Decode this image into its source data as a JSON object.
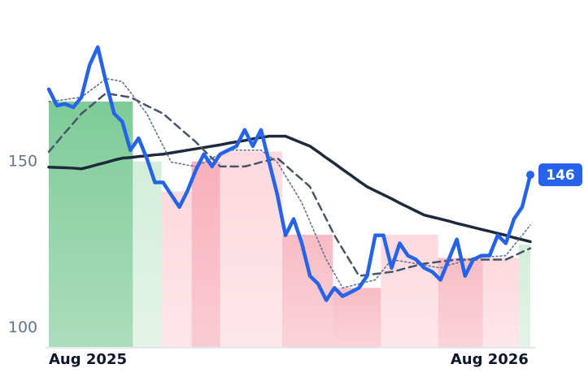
{
  "chart_data": {
    "type": "line",
    "categories": [
      "Aug 2025",
      null,
      null,
      null,
      null,
      null,
      null,
      null,
      null,
      null,
      null,
      null,
      null,
      null,
      null,
      null,
      null,
      null,
      null,
      null,
      null,
      null,
      null,
      null,
      null,
      null,
      null,
      null,
      null,
      null,
      null,
      null,
      null,
      null,
      null,
      null,
      null,
      null,
      null,
      null,
      null,
      null,
      null,
      null,
      null,
      null,
      null,
      null,
      null,
      null,
      null,
      null,
      null,
      null,
      "Aug 2026",
      null,
      null,
      null,
      null,
      null
    ],
    "ylim": [
      94,
      190
    ],
    "yticks": [
      100,
      150
    ],
    "grid": false,
    "regions": [
      {
        "from": 0,
        "to": 10.3,
        "value": 168,
        "color": "#7fcb98"
      },
      {
        "from": 10.3,
        "to": 13.8,
        "value": 150,
        "color": "#d3eedb"
      },
      {
        "from": 13.8,
        "to": 17.5,
        "value": 141,
        "color": "#fdd9df"
      },
      {
        "from": 17.5,
        "to": 21,
        "value": 150,
        "color": "#f8b0bd"
      },
      {
        "from": 21,
        "to": 28.6,
        "value": 153,
        "color": "#fdd9df"
      },
      {
        "from": 28.6,
        "to": 34.8,
        "value": 128,
        "color": "#f8bcc6"
      },
      {
        "from": 34.8,
        "to": 40.7,
        "value": 112,
        "color": "#f8bcc6"
      },
      {
        "from": 40.7,
        "to": 47.7,
        "value": 128,
        "color": "#fdd9df"
      },
      {
        "from": 47.7,
        "to": 53.2,
        "value": 121,
        "color": "#f8bcc6"
      },
      {
        "from": 53.2,
        "to": 57.6,
        "value": 121,
        "color": "#fdd9df"
      },
      {
        "from": 57.6,
        "to": 59,
        "value": 125,
        "color": "#d3eedb"
      }
    ],
    "series": [
      {
        "color": "#1e293b",
        "style": "solid",
        "values": [
          148.3,
          148.2,
          148.1,
          148,
          147.8,
          148.4,
          149.1,
          149.7,
          150.4,
          151,
          151.2,
          151.5,
          151.7,
          152,
          152.2,
          152.6,
          153,
          153.4,
          153.8,
          154.2,
          154.6,
          155,
          155.5,
          155.9,
          156.3,
          156.8,
          157.2,
          157.6,
          157.6,
          157.6,
          156.6,
          155.6,
          154.6,
          152.9,
          151.1,
          149.4,
          147.6,
          145.9,
          144.1,
          142.4,
          141.2,
          140,
          138.8,
          137.5,
          136.3,
          135.1,
          133.9,
          133.3,
          132.7,
          132.1,
          131.4,
          130.8,
          130.2,
          129.6,
          129,
          128.4,
          127.8,
          127.1,
          126.5,
          125.9
        ]
      },
      {
        "color": "#475569",
        "style": "dashed",
        "values": [
          152.9,
          155.8,
          158.7,
          161.5,
          164.4,
          166.4,
          168.5,
          170.5,
          170.1,
          169.7,
          169.3,
          168.1,
          166.8,
          165.6,
          164.4,
          162.3,
          160.1,
          158,
          155.9,
          153.4,
          151,
          148.5,
          148.5,
          148.5,
          148.5,
          149.1,
          149.8,
          150.4,
          151,
          148.9,
          146.7,
          144.6,
          142.4,
          137.5,
          132.7,
          127.8,
          123.7,
          119.7,
          115.6,
          115.9,
          116.2,
          116.5,
          116.8,
          117.4,
          118.1,
          118.7,
          119.3,
          119.6,
          119.9,
          120.2,
          120.5,
          120.5,
          120.5,
          120.5,
          120.5,
          120.5,
          120.5,
          121.6,
          122.8,
          123.9
        ]
      },
      {
        "color": "#64748b",
        "style": "dotted",
        "values": [
          168,
          168.3,
          168.6,
          169,
          169.3,
          171.2,
          173,
          174.9,
          174.5,
          174,
          170.8,
          167.6,
          164.4,
          159.5,
          154.7,
          149.8,
          149.4,
          148.9,
          148.5,
          149.7,
          151,
          152.2,
          153.4,
          153.4,
          153.4,
          153.4,
          153.4,
          151.6,
          149.8,
          145.7,
          141.7,
          137.6,
          131.9,
          126.2,
          120.5,
          116.3,
          112,
          112.6,
          113.2,
          113.8,
          114.4,
          117.5,
          120.5,
          120.1,
          119.7,
          119.3,
          118.9,
          118.4,
          118,
          118.8,
          119.5,
          120.3,
          121,
          121.2,
          121.4,
          121.5,
          121.7,
          124.8,
          127.8,
          130.9
        ]
      },
      {
        "color": "#2563eb",
        "style": "price",
        "values": [
          171.7,
          166.8,
          167.3,
          166.3,
          169.3,
          179,
          184.4,
          174,
          164.4,
          162,
          153.4,
          157,
          151,
          143.7,
          143.7,
          140,
          136.3,
          141.2,
          147.3,
          152.2,
          148.5,
          152.2,
          153.4,
          154.6,
          159.5,
          154.6,
          159.5,
          149.8,
          140,
          127.8,
          132.7,
          125.4,
          115.6,
          113.2,
          108.3,
          112,
          109.5,
          110.7,
          112,
          115.6,
          127.8,
          127.8,
          118,
          125.4,
          121.7,
          120.5,
          118,
          116.8,
          114.4,
          120.5,
          126.6,
          115.6,
          120.5,
          121.7,
          121.7,
          127.8,
          125.4,
          132.7,
          136.3,
          146
        ]
      }
    ]
  }
}
